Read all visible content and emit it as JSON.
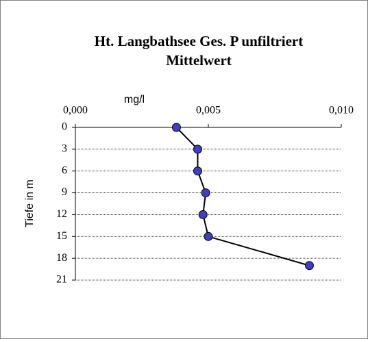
{
  "chart_data": {
    "type": "line",
    "title": [
      "Ht. Langbathsee Ges. P unfiltriert",
      "Mittelwert"
    ],
    "x_label": "mg/l",
    "y_label": "Tiefe in m",
    "x": [
      0.0038,
      0.0046,
      0.0046,
      0.0049,
      0.0048,
      0.005,
      0.0088
    ],
    "y": [
      0,
      3,
      6,
      9,
      12,
      15,
      19
    ],
    "color": "#3f3fbf",
    "line_color": "#000000",
    "xlim": [
      0,
      0.01
    ],
    "xticks": [
      {
        "value": 0,
        "label": "0,000"
      },
      {
        "value": 0.005,
        "label": "0,005"
      },
      {
        "value": 0.01,
        "label": "0,010"
      }
    ],
    "ylim": [
      0,
      21
    ],
    "yticks": [
      0,
      3,
      6,
      9,
      12,
      15,
      18,
      21
    ],
    "y_inverted": true,
    "x_axis_position": "top",
    "grid": true
  }
}
